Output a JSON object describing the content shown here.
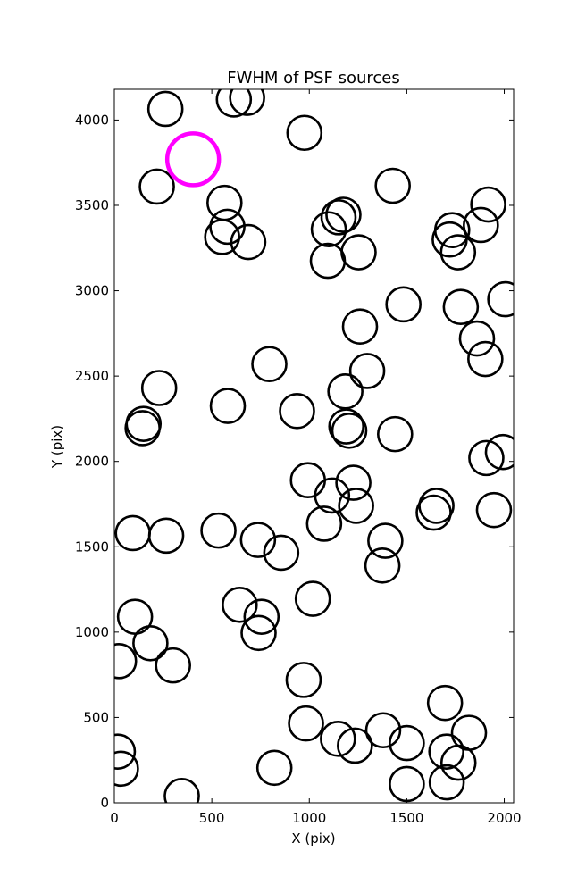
{
  "chart_data": {
    "type": "scatter",
    "title": "FWHM of PSF sources",
    "xlabel": "X (pix)",
    "ylabel": "Y (pix)",
    "xlim": [
      0,
      2048
    ],
    "ylim": [
      0,
      4180
    ],
    "x_ticks": [
      0,
      500,
      1000,
      1500,
      2000
    ],
    "y_ticks": [
      0,
      500,
      1000,
      1500,
      2000,
      2500,
      3000,
      3500,
      4000
    ],
    "marker": "open-circle",
    "grid": false,
    "legend": "none",
    "colors": {
      "source": "#000000",
      "highlight": "#ff00ff"
    },
    "series": [
      {
        "points": [
          [
            262,
            4065
          ],
          [
            613,
            4120
          ],
          [
            681,
            4130
          ],
          [
            975,
            3925
          ],
          [
            218,
            3610
          ],
          [
            565,
            3515
          ],
          [
            580,
            3375
          ],
          [
            553,
            3315
          ],
          [
            687,
            3285
          ],
          [
            1100,
            3360
          ],
          [
            1150,
            3430
          ],
          [
            1175,
            3445
          ],
          [
            1095,
            3175
          ],
          [
            1253,
            3225
          ],
          [
            1428,
            3615
          ],
          [
            1733,
            3355
          ],
          [
            1720,
            3300
          ],
          [
            1763,
            3225
          ],
          [
            1880,
            3385
          ],
          [
            1918,
            3505
          ],
          [
            2005,
            2950
          ],
          [
            1483,
            2920
          ],
          [
            1260,
            2790
          ],
          [
            1777,
            2905
          ],
          [
            1860,
            2720
          ],
          [
            1903,
            2600
          ],
          [
            795,
            2570
          ],
          [
            1297,
            2530
          ],
          [
            1185,
            2410
          ],
          [
            1190,
            2205
          ],
          [
            1205,
            2180
          ],
          [
            1440,
            2160
          ],
          [
            937,
            2295
          ],
          [
            582,
            2325
          ],
          [
            230,
            2430
          ],
          [
            150,
            2220
          ],
          [
            145,
            2195
          ],
          [
            993,
            1890
          ],
          [
            1226,
            1875
          ],
          [
            1117,
            1800
          ],
          [
            1240,
            1740
          ],
          [
            1076,
            1635
          ],
          [
            1652,
            1740
          ],
          [
            1638,
            1700
          ],
          [
            1908,
            2020
          ],
          [
            1993,
            2055
          ],
          [
            1947,
            1715
          ],
          [
            95,
            1580
          ],
          [
            266,
            1565
          ],
          [
            534,
            1595
          ],
          [
            737,
            1540
          ],
          [
            856,
            1465
          ],
          [
            1390,
            1535
          ],
          [
            1375,
            1390
          ],
          [
            643,
            1160
          ],
          [
            755,
            1090
          ],
          [
            740,
            995
          ],
          [
            1018,
            1195
          ],
          [
            106,
            1090
          ],
          [
            185,
            935
          ],
          [
            301,
            805
          ],
          [
            24,
            830
          ],
          [
            971,
            720
          ],
          [
            983,
            465
          ],
          [
            1147,
            375
          ],
          [
            1234,
            335
          ],
          [
            1379,
            425
          ],
          [
            1500,
            350
          ],
          [
            1696,
            585
          ],
          [
            1703,
            300
          ],
          [
            1765,
            235
          ],
          [
            1819,
            410
          ],
          [
            1705,
            120
          ],
          [
            1500,
            110
          ],
          [
            346,
            40
          ],
          [
            821,
            205
          ],
          [
            18,
            300
          ],
          [
            34,
            200
          ]
        ]
      },
      {
        "points": [
          [
            404,
            3770
          ]
        ]
      }
    ]
  }
}
